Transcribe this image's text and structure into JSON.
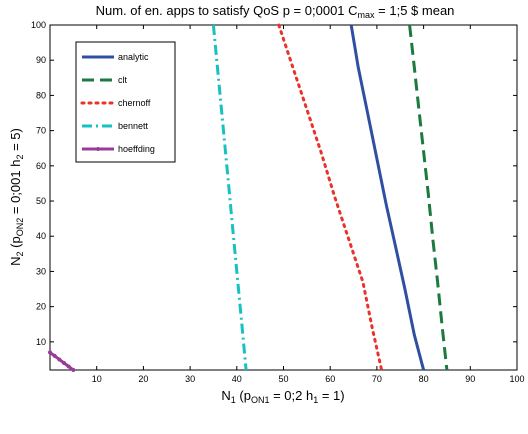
{
  "chart_data": {
    "type": "line",
    "title": "Num. of en. apps to satisfy QoS p = 0;0001 C",
    "title_sub": "max",
    "title_suffix": " = 1;5 $ mean",
    "xlabel_pre": "N",
    "xlabel_sub1": "1",
    "xlabel_mid": " (p",
    "xlabel_sub2": "ON1",
    "xlabel_post": " = 0;2 h",
    "xlabel_sub3": "1",
    "xlabel_end": " = 1)",
    "ylabel_pre": "N",
    "ylabel_sub1": "2",
    "ylabel_mid": " (p",
    "ylabel_sub2": "ON2",
    "ylabel_post": " = 0;001 h",
    "ylabel_sub3": "2",
    "ylabel_end": " = 5)",
    "xlim": [
      0,
      100
    ],
    "ylim": [
      2,
      100
    ],
    "x_ticks": [
      10,
      20,
      30,
      40,
      50,
      60,
      70,
      80,
      90,
      100
    ],
    "y_ticks": [
      10,
      20,
      30,
      40,
      50,
      60,
      70,
      80,
      90,
      100
    ],
    "grid": false,
    "legend_position": "top-left",
    "series": [
      {
        "name": "analytic",
        "color": "#2f4fa3",
        "style": "solid",
        "x": [
          64.5,
          66,
          68,
          70,
          72,
          74,
          76,
          78,
          80
        ],
        "y": [
          100,
          88,
          75,
          62,
          49,
          37,
          25,
          12,
          2
        ]
      },
      {
        "name": "clt",
        "color": "#1b7a3e",
        "style": "dashed",
        "x": [
          77,
          78,
          79,
          80,
          81,
          82,
          83,
          84,
          85
        ],
        "y": [
          100,
          88,
          76,
          64,
          52,
          39,
          27,
          14,
          2
        ]
      },
      {
        "name": "chernoff",
        "color": "#e8322b",
        "style": "dotted",
        "x": [
          49,
          52,
          55,
          58,
          61,
          64,
          67,
          69,
          71
        ],
        "y": [
          100,
          88,
          76,
          64,
          51,
          39,
          27,
          14,
          2
        ]
      },
      {
        "name": "bennett",
        "color": "#19c0c0",
        "style": "dashdot",
        "x": [
          35,
          36,
          37,
          38,
          39,
          40,
          41,
          42
        ],
        "y": [
          100,
          86,
          72,
          58,
          44,
          30,
          16,
          2
        ]
      },
      {
        "name": "hoeffding",
        "color": "#9b3b99",
        "style": "marker",
        "x": [
          0,
          1,
          2,
          3,
          4,
          5
        ],
        "y": [
          7,
          6,
          5,
          4,
          3,
          2
        ]
      }
    ]
  }
}
